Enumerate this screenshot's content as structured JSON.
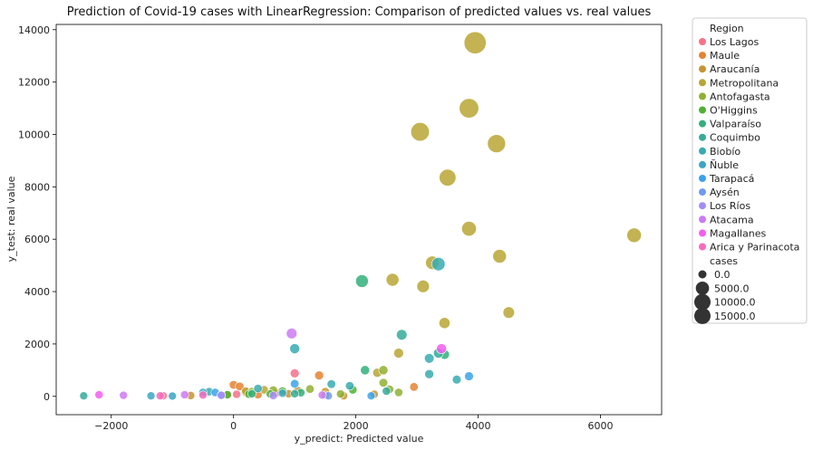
{
  "chart_data": {
    "type": "scatter",
    "title": "Prediction of Covid-19 cases with LinearRegression: Comparison of predicted values vs. real values",
    "xlabel": "y_predict: Predicted value",
    "ylabel": "y_test: real value",
    "xlim": [
      -2900,
      7000
    ],
    "ylim": [
      -700,
      14200
    ],
    "xticks": [
      -2000,
      0,
      2000,
      4000,
      6000
    ],
    "yticks": [
      0,
      2000,
      4000,
      6000,
      8000,
      10000,
      12000,
      14000
    ],
    "legend": {
      "placement": "outside-right",
      "hue_title": "Region",
      "size_title": "cases",
      "size_entries": [
        0.0,
        5000.0,
        10000.0,
        15000.0
      ]
    },
    "series": [
      {
        "name": "Los Lagos",
        "color": "#f77189",
        "points": [
          [
            1000,
            880
          ],
          [
            -1150,
            20
          ],
          [
            50,
            80
          ],
          [
            700,
            130
          ]
        ]
      },
      {
        "name": "Maule",
        "color": "#e68332",
        "points": [
          [
            1400,
            800
          ],
          [
            2950,
            360
          ],
          [
            0,
            440
          ],
          [
            100,
            380
          ],
          [
            200,
            150
          ],
          [
            -100,
            80
          ],
          [
            400,
            60
          ]
        ]
      },
      {
        "name": "Araucanía",
        "color": "#c6942f",
        "points": [
          [
            1050,
            220
          ],
          [
            1500,
            180
          ],
          [
            1800,
            20
          ],
          [
            2300,
            80
          ],
          [
            -700,
            30
          ],
          [
            900,
            100
          ]
        ]
      },
      {
        "name": "Metropolitana",
        "color": "#b8a634",
        "points": [
          [
            3950,
            13500
          ],
          [
            3850,
            11000
          ],
          [
            3050,
            10100
          ],
          [
            4300,
            9650
          ],
          [
            3500,
            8350
          ],
          [
            3850,
            6400
          ],
          [
            6550,
            6150
          ],
          [
            4350,
            5350
          ],
          [
            3250,
            5100
          ],
          [
            2600,
            4450
          ],
          [
            3100,
            4200
          ],
          [
            4500,
            3200
          ],
          [
            3450,
            2800
          ],
          [
            2700,
            1650
          ],
          [
            2350,
            900
          ],
          [
            1500,
            50
          ],
          [
            500,
            250
          ],
          [
            200,
            200
          ]
        ]
      },
      {
        "name": "Antofagasta",
        "color": "#8fb032",
        "points": [
          [
            2450,
            1000
          ],
          [
            2450,
            520
          ],
          [
            2550,
            270
          ],
          [
            2700,
            150
          ],
          [
            1750,
            90
          ],
          [
            300,
            180
          ],
          [
            650,
            240
          ],
          [
            1250,
            280
          ]
        ]
      },
      {
        "name": "O'Higgins",
        "color": "#50b131",
        "points": [
          [
            -100,
            60
          ],
          [
            250,
            80
          ],
          [
            600,
            90
          ],
          [
            800,
            200
          ],
          [
            1950,
            250
          ]
        ]
      },
      {
        "name": "Valparaíso",
        "color": "#33b07a",
        "points": [
          [
            2100,
            4400
          ],
          [
            2150,
            1000
          ],
          [
            3450,
            1600
          ],
          [
            300,
            100
          ],
          [
            1100,
            140
          ]
        ]
      },
      {
        "name": "Coquimbo",
        "color": "#35ac98",
        "points": [
          [
            2750,
            2350
          ],
          [
            3350,
            1650
          ],
          [
            2500,
            200
          ],
          [
            -2450,
            20
          ],
          [
            1000,
            100
          ]
        ]
      },
      {
        "name": "Biobío",
        "color": "#37abb1",
        "points": [
          [
            3350,
            5050
          ],
          [
            1000,
            1820
          ],
          [
            3200,
            1450
          ],
          [
            3200,
            850
          ],
          [
            3650,
            640
          ],
          [
            1600,
            470
          ],
          [
            400,
            300
          ],
          [
            -400,
            180
          ],
          [
            1900,
            400
          ]
        ]
      },
      {
        "name": "Ñuble",
        "color": "#39a7c4",
        "points": [
          [
            -1000,
            10
          ],
          [
            -1350,
            20
          ],
          [
            -500,
            150
          ],
          [
            800,
            120
          ]
        ]
      },
      {
        "name": "Tarapacá",
        "color": "#3ba3ec",
        "points": [
          [
            1000,
            480
          ],
          [
            3850,
            770
          ],
          [
            -300,
            150
          ],
          [
            2250,
            20
          ]
        ]
      },
      {
        "name": "Aysén",
        "color": "#6e9af3",
        "points": [
          [
            -200,
            50
          ],
          [
            1550,
            20
          ]
        ]
      },
      {
        "name": "Los Ríos",
        "color": "#a48cf4",
        "points": [
          [
            -200,
            40
          ],
          [
            650,
            30
          ]
        ]
      },
      {
        "name": "Atacama",
        "color": "#cc7af4",
        "points": [
          [
            950,
            2400
          ],
          [
            -1800,
            40
          ],
          [
            -800,
            60
          ],
          [
            1450,
            50
          ]
        ]
      },
      {
        "name": "Magallanes",
        "color": "#f45cf2",
        "points": [
          [
            3400,
            1820
          ],
          [
            -2200,
            60
          ]
        ]
      },
      {
        "name": "Arica y Parinacota",
        "color": "#f66bbd",
        "points": [
          [
            -500,
            50
          ],
          [
            -1200,
            20
          ]
        ]
      }
    ]
  }
}
